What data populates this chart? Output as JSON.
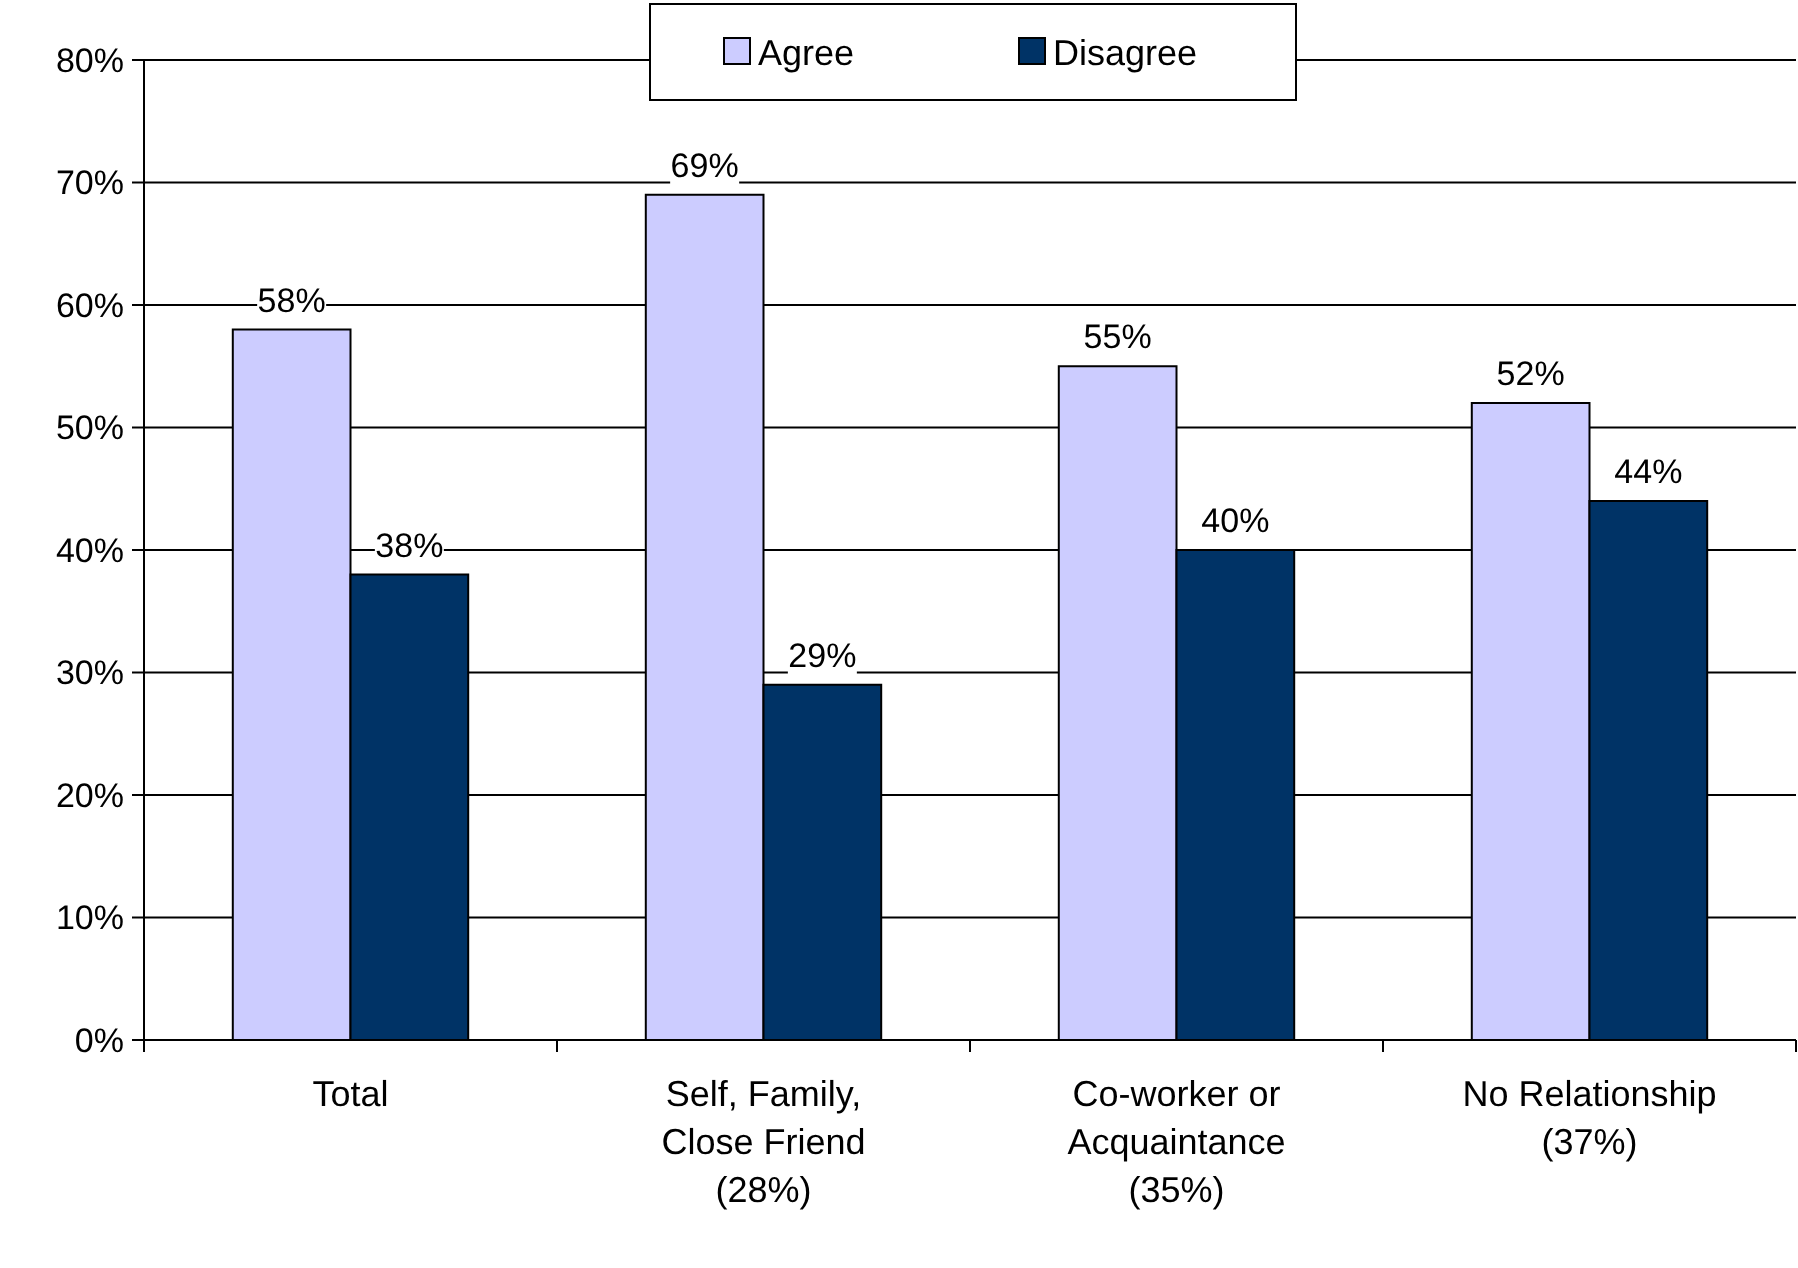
{
  "chart_data": {
    "type": "bar",
    "categories": [
      "Total",
      "Self, Family,\nClose Friend\n(28%)",
      "Co-worker or\nAcquaintance\n(35%)",
      "No Relationship\n(37%)"
    ],
    "series": [
      {
        "name": "Agree",
        "color": "#ccccff",
        "values": [
          58,
          69,
          55,
          52
        ],
        "value_labels": [
          "58%",
          "69%",
          "55%",
          "52%"
        ]
      },
      {
        "name": "Disagree",
        "color": "#003366",
        "values": [
          38,
          29,
          40,
          44
        ],
        "value_labels": [
          "38%",
          "29%",
          "40%",
          "44%"
        ]
      }
    ],
    "ylim": [
      0,
      80
    ],
    "yticks": [
      {
        "value": 0,
        "label": "0%"
      },
      {
        "value": 10,
        "label": "10%"
      },
      {
        "value": 20,
        "label": "20%"
      },
      {
        "value": 30,
        "label": "30%"
      },
      {
        "value": 40,
        "label": "40%"
      },
      {
        "value": 50,
        "label": "50%"
      },
      {
        "value": 60,
        "label": "60%"
      },
      {
        "value": 70,
        "label": "70%"
      },
      {
        "value": 80,
        "label": "80%"
      }
    ],
    "grid": "y",
    "legend": "top"
  }
}
